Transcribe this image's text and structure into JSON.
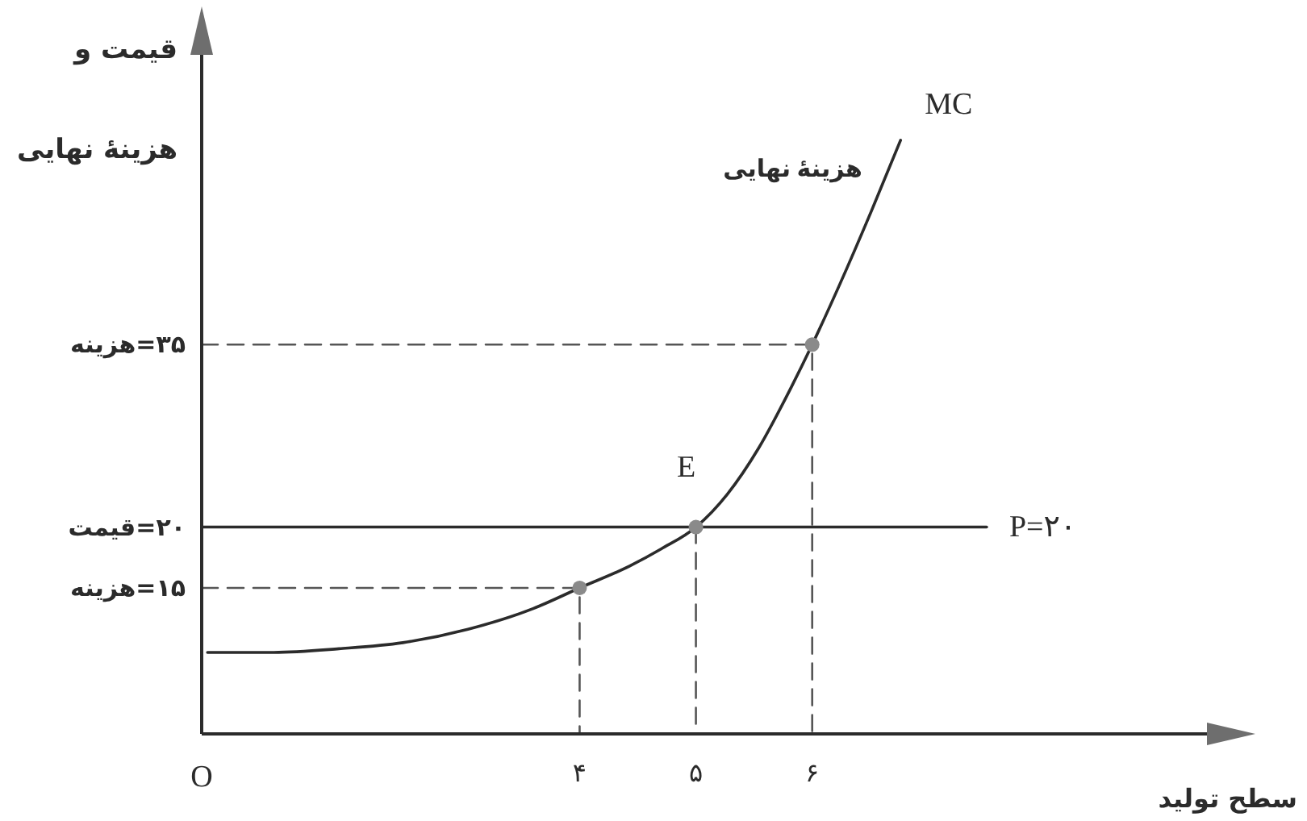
{
  "chart_data": {
    "type": "line",
    "xlabel": "سطح تولید",
    "ylabel": "قیمت و هزینهٔ نهایی",
    "xlim": [
      0.75,
      9.7
    ],
    "xticks": [
      {
        "value": 4,
        "label": "۴"
      },
      {
        "value": 5,
        "label": "۵"
      },
      {
        "value": 6,
        "label": "۶"
      }
    ],
    "ylim": [
      3,
      62
    ],
    "yticks": [
      {
        "value": 15,
        "label": "۱۵=هزینه"
      },
      {
        "value": 20,
        "label": "۲۰=قیمت"
      },
      {
        "value": 35,
        "label": "۳۵=هزینه"
      }
    ],
    "series": [
      {
        "line_style": "dashed",
        "color": "#555555",
        "x": [
          0.75,
          4,
          4
        ],
        "values": [
          15,
          15,
          3
        ]
      },
      {
        "line_style": "dashed",
        "color": "#555555",
        "x": [
          5,
          5
        ],
        "values": [
          20,
          3
        ]
      },
      {
        "line_style": "dashed",
        "color": "#555555",
        "x": [
          0.75,
          6,
          6
        ],
        "values": [
          35,
          35,
          3
        ]
      },
      {
        "name": "P=۲۰",
        "color": "#2b2b2b",
        "x": [
          0.75,
          7.5
        ],
        "values": [
          20,
          20
        ]
      },
      {
        "name": "MC",
        "color": "#2b2b2b",
        "x": [
          0.8,
          1.37,
          1.93,
          2.48,
          3.04,
          3.6,
          4,
          4.43,
          4.7,
          5,
          5.27,
          5.54,
          5.82,
          6,
          6.23,
          6.51,
          6.76
        ],
        "values": [
          9.7,
          9.7,
          10,
          10.5,
          11.6,
          13.3,
          15,
          16.8,
          18.2,
          20,
          22.7,
          26.5,
          31.5,
          35,
          39.8,
          46,
          51.8
        ]
      },
      {
        "type": "scatter",
        "marker": "circle",
        "color": "#8a8a8a",
        "x": [
          4,
          5,
          6
        ],
        "values": [
          15,
          20,
          35
        ]
      }
    ],
    "annotations": [
      {
        "text": "هزینهٔ نهایی",
        "x": 6.5,
        "y": 46
      },
      {
        "text": "E",
        "x": 5,
        "y": 20
      },
      "O"
    ]
  }
}
